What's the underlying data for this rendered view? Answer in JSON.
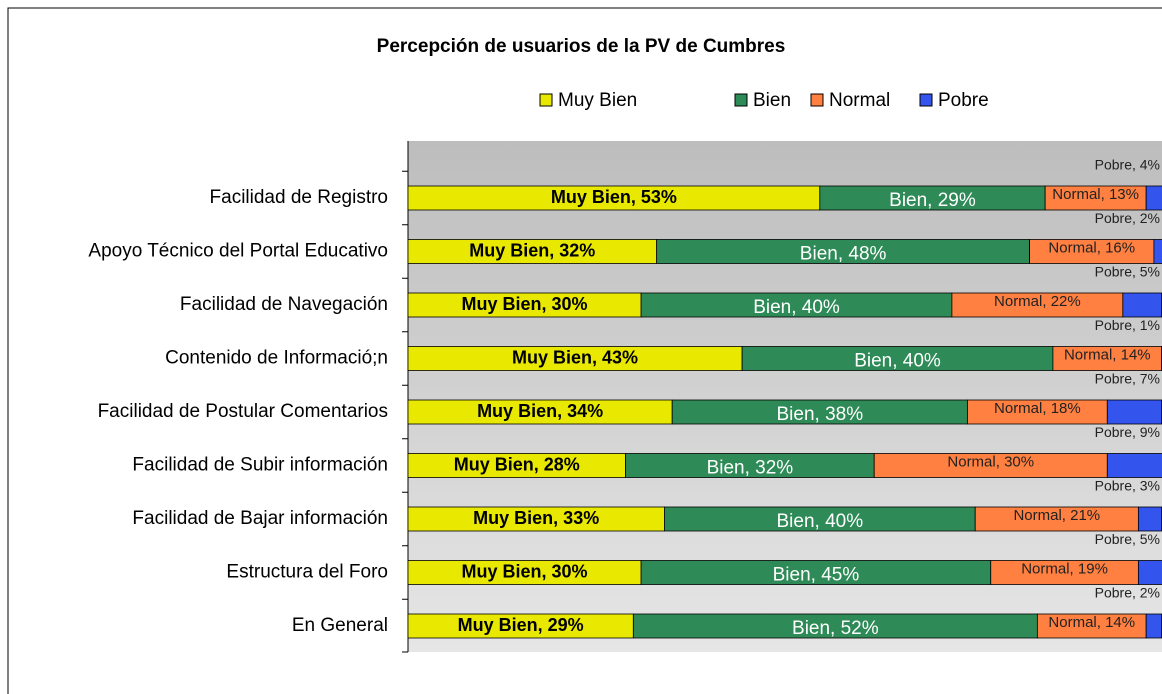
{
  "chart_data": {
    "type": "stacked_barh",
    "title": "Percepción de usuarios de la PV de Cumbres",
    "categories": [
      "Facilidad de Registro",
      "Apoyo Técnico del Portal Educativo",
      "Facilidad de Navegación",
      "Contenido de Informació;n",
      "Facilidad de Postular Comentarios",
      "Facilidad de Subir información",
      "Facilidad de Bajar información",
      "Estructura del Foro",
      "En General"
    ],
    "legend": "top",
    "series": [
      {
        "name": "Muy Bien",
        "color": "#e8e800",
        "values": [
          53,
          32,
          30,
          43,
          34,
          28,
          33,
          30,
          29
        ],
        "value_labels": [
          "Muy Bien, 53%",
          "Muy Bien, 32%",
          "Muy Bien, 30%",
          "Muy Bien, 43%",
          "Muy Bien, 34%",
          "Muy Bien, 28%",
          "Muy Bien, 33%",
          "Muy Bien, 30%",
          "Muy Bien, 29%"
        ]
      },
      {
        "name": "Bien",
        "color": "#2e8b57",
        "values": [
          29,
          48,
          40,
          40,
          38,
          32,
          40,
          45,
          52
        ],
        "value_labels": [
          "Bien, 29%",
          "Bien, 48%",
          "Bien, 40%",
          "Bien, 40%",
          "Bien, 38%",
          "Bien, 32%",
          "Bien, 40%",
          "Bien, 45%",
          "Bien, 52%"
        ]
      },
      {
        "name": "Normal",
        "color": "#ff8040",
        "values": [
          13,
          16,
          22,
          14,
          18,
          30,
          21,
          19,
          14
        ],
        "value_labels": [
          "Normal, 13%",
          "Normal, 16%",
          "Normal, 22%",
          "Normal, 14%",
          "Normal, 18%",
          "Normal, 30%",
          "Normal, 21%",
          "Normal, 19%",
          "Normal, 14%"
        ]
      },
      {
        "name": "Pobre",
        "color": "#3355ee",
        "values": [
          4,
          2,
          5,
          1,
          7,
          9,
          3,
          5,
          2
        ],
        "value_labels": [
          "Pobre, 4%",
          "Pobre, 2%",
          "Pobre, 5%",
          "Pobre, 1%",
          "Pobre, 7%",
          "Pobre, 9%",
          "Pobre, 3%",
          "Pobre, 5%",
          "Pobre, 2%"
        ]
      }
    ]
  }
}
